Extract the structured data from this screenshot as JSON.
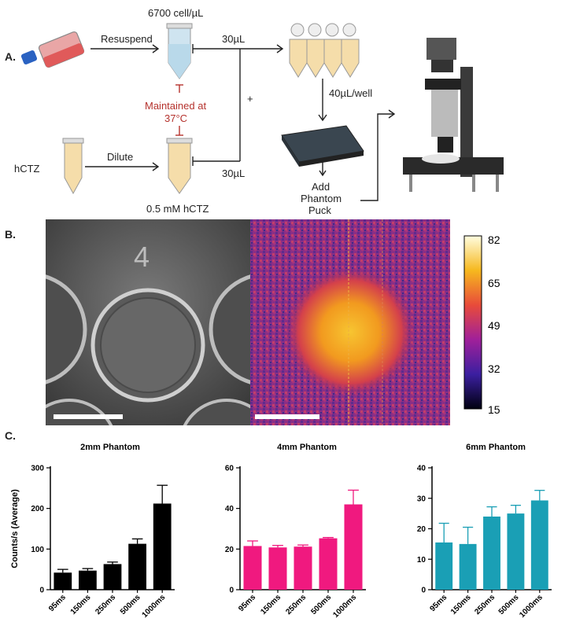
{
  "panelA": {
    "letter": "A.",
    "cell_conc": "6700 cell/µL",
    "resuspend": "Resuspend",
    "maintained": "Maintained at",
    "temp": "37°C",
    "vol_top": "30µL",
    "vol_bottom": "30µL",
    "plus": "+",
    "per_well": "40µL/well",
    "hctz": "hCTZ",
    "dilute": "Dilute",
    "hctz_conc": "0.5 mM hCTZ",
    "add_line1": "Add",
    "add_line2": "Phantom",
    "add_line3": "Puck"
  },
  "panelB": {
    "letter": "B.",
    "well_number": "4",
    "colorbar_ticks": [
      "82",
      "65",
      "49",
      "32",
      "15"
    ]
  },
  "panelC": {
    "letter": "C.",
    "ylabel": "Counts/s (Average)"
  },
  "chart_data": [
    {
      "type": "bar",
      "title": "2mm Phantom",
      "categories": [
        "95ms",
        "150ms",
        "250ms",
        "500ms",
        "1000ms"
      ],
      "values": [
        42,
        47,
        63,
        113,
        212
      ],
      "errors": [
        8,
        5,
        5,
        12,
        45
      ],
      "ylim": [
        0,
        300
      ],
      "yticks": [
        0,
        100,
        200,
        300
      ],
      "ylabel": "Counts/s (Average)",
      "color": "#000000"
    },
    {
      "type": "bar",
      "title": "4mm Phantom",
      "categories": [
        "95ms",
        "150ms",
        "250ms",
        "500ms",
        "1000ms"
      ],
      "values": [
        21.5,
        20.8,
        21.2,
        25.3,
        42
      ],
      "errors": [
        2.5,
        1.0,
        0.8,
        0.4,
        7
      ],
      "ylim": [
        0,
        60
      ],
      "yticks": [
        0,
        20,
        40,
        60
      ],
      "ylabel": "",
      "color": "#f0197f"
    },
    {
      "type": "bar",
      "title": "6mm Phantom",
      "categories": [
        "95ms",
        "150ms",
        "250ms",
        "500ms",
        "1000ms"
      ],
      "values": [
        15.5,
        15,
        24,
        25,
        29.3
      ],
      "errors": [
        6.3,
        5.5,
        3.2,
        2.7,
        3.3
      ],
      "ylim": [
        0,
        40
      ],
      "yticks": [
        0,
        10,
        20,
        30,
        40
      ],
      "ylabel": "",
      "color": "#1a9fb5"
    }
  ]
}
